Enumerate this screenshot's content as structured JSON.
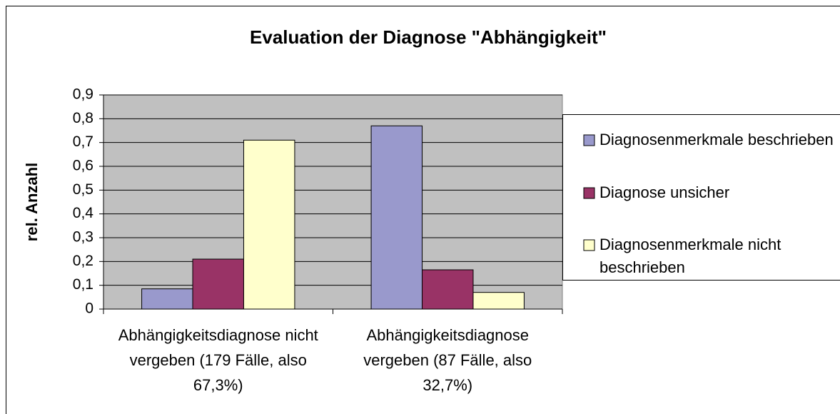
{
  "chart_data": {
    "type": "bar",
    "title": "Evaluation der Diagnose \"Abhängigkeit\"",
    "y_label": "rel. Anzahl",
    "categories": [
      "Abhängigkeitsdiagnose nicht vergeben (179 Fälle, also 67,3%)",
      "Abhängigkeitsdiagnose vergeben (87 Fälle, also 32,7%)"
    ],
    "series": [
      {
        "name": "Diagnosenmerkmale beschrieben",
        "color": "#9999cc",
        "values": [
          0.085,
          0.77
        ]
      },
      {
        "name": "Diagnose unsicher",
        "color": "#993366",
        "values": [
          0.21,
          0.165
        ]
      },
      {
        "name": "Diagnosenmerkmale nicht beschrieben",
        "color": "#ffffcc",
        "values": [
          0.71,
          0.07
        ]
      }
    ],
    "ylim": [
      0,
      0.9
    ],
    "yticks": [
      0,
      {
        "value": 0.1,
        "label": "0,1"
      },
      {
        "value": 0.2,
        "label": "0,2"
      },
      {
        "value": 0.3,
        "label": "0,3"
      },
      {
        "value": 0.4,
        "label": "0,4"
      },
      {
        "value": 0.5,
        "label": "0,5"
      },
      {
        "value": 0.6,
        "label": "0,6"
      },
      {
        "value": 0.7,
        "label": "0,7"
      },
      {
        "value": 0.8,
        "label": "0,8"
      },
      {
        "value": 0.9,
        "label": "0,9"
      }
    ],
    "grid": true,
    "plot_background": "#c0c0c0",
    "legend": "right"
  }
}
